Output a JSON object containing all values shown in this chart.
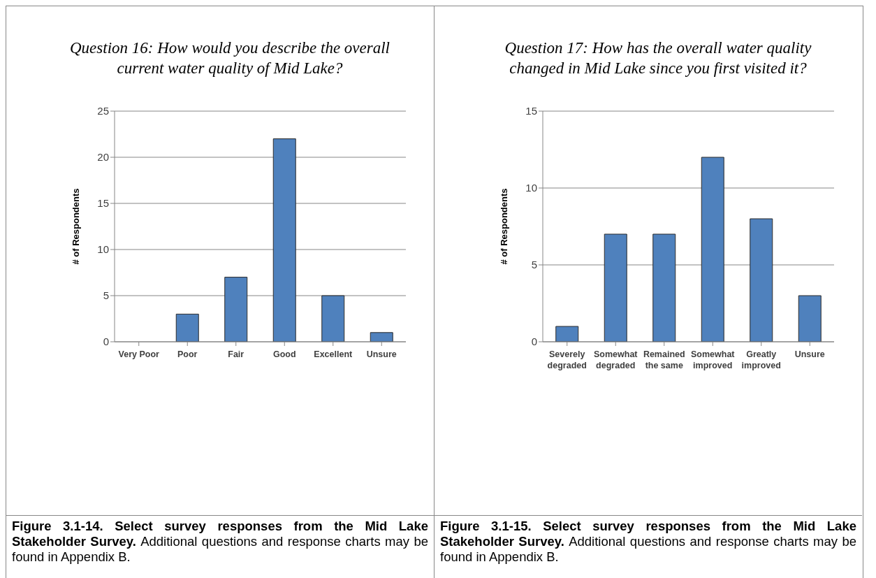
{
  "chart_data": [
    {
      "type": "bar",
      "title": "Question 16: How would you describe the overall current water quality of Mid Lake?",
      "ylabel": "# of Respondents",
      "categories": [
        "Very Poor",
        "Poor",
        "Fair",
        "Good",
        "Excellent",
        "Unsure"
      ],
      "values": [
        0,
        3,
        7,
        22,
        5,
        1
      ],
      "color": "#4f81bd",
      "ylim": [
        0,
        25
      ],
      "yticks": [
        0,
        5,
        10,
        15,
        20,
        25
      ],
      "grid": "y",
      "annotations": [
        "Figure 3.1-14.  Select survey responses from the Mid Lake Stakeholder Survey.",
        "Additional questions and response charts may be found in Appendix B."
      ]
    },
    {
      "type": "bar",
      "title": "Question 17: How has the overall water quality changed in Mid Lake since you first visited it?",
      "ylabel": "# of Respondents",
      "categories": [
        "Severely degraded",
        "Somewhat degraded",
        "Remained the same",
        "Somewhat improved",
        "Greatly improved",
        "Unsure"
      ],
      "values": [
        1,
        7,
        7,
        12,
        8,
        3
      ],
      "color": "#4f81bd",
      "ylim": [
        0,
        15
      ],
      "yticks": [
        0,
        5,
        10,
        15
      ],
      "grid": "y",
      "annotations": [
        "Figure 3.1-15.  Select survey responses from the Mid Lake Stakeholder Survey.",
        "Additional questions and response charts may be found in Appendix B."
      ]
    }
  ]
}
